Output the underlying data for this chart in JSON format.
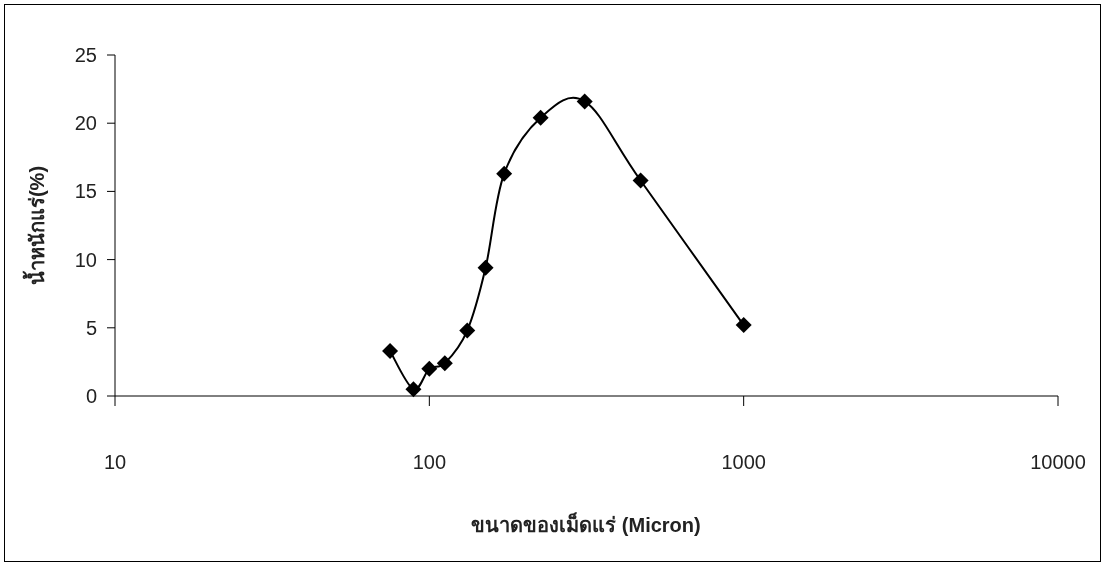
{
  "chart_data": {
    "type": "line",
    "xlabel": "ขนาดของเม็ดแร่ (Micron)",
    "ylabel": "น้ำหนักแร่(%)",
    "log": "x",
    "xlim": [
      10,
      10000
    ],
    "xticks": [
      10,
      100,
      1000,
      10000
    ],
    "ylim": [
      0,
      25
    ],
    "yticks": [
      0,
      5,
      10,
      15,
      20,
      25
    ],
    "marker": "diamond",
    "line_style": "solid",
    "series": [
      {
        "color": "#000000",
        "x": [
          75,
          89,
          100,
          112,
          132,
          151,
          173,
          226,
          312,
          470,
          1000
        ],
        "values": [
          3.3,
          0.5,
          2.0,
          2.4,
          4.8,
          9.4,
          16.3,
          20.4,
          21.6,
          15.8,
          5.2
        ]
      }
    ]
  }
}
